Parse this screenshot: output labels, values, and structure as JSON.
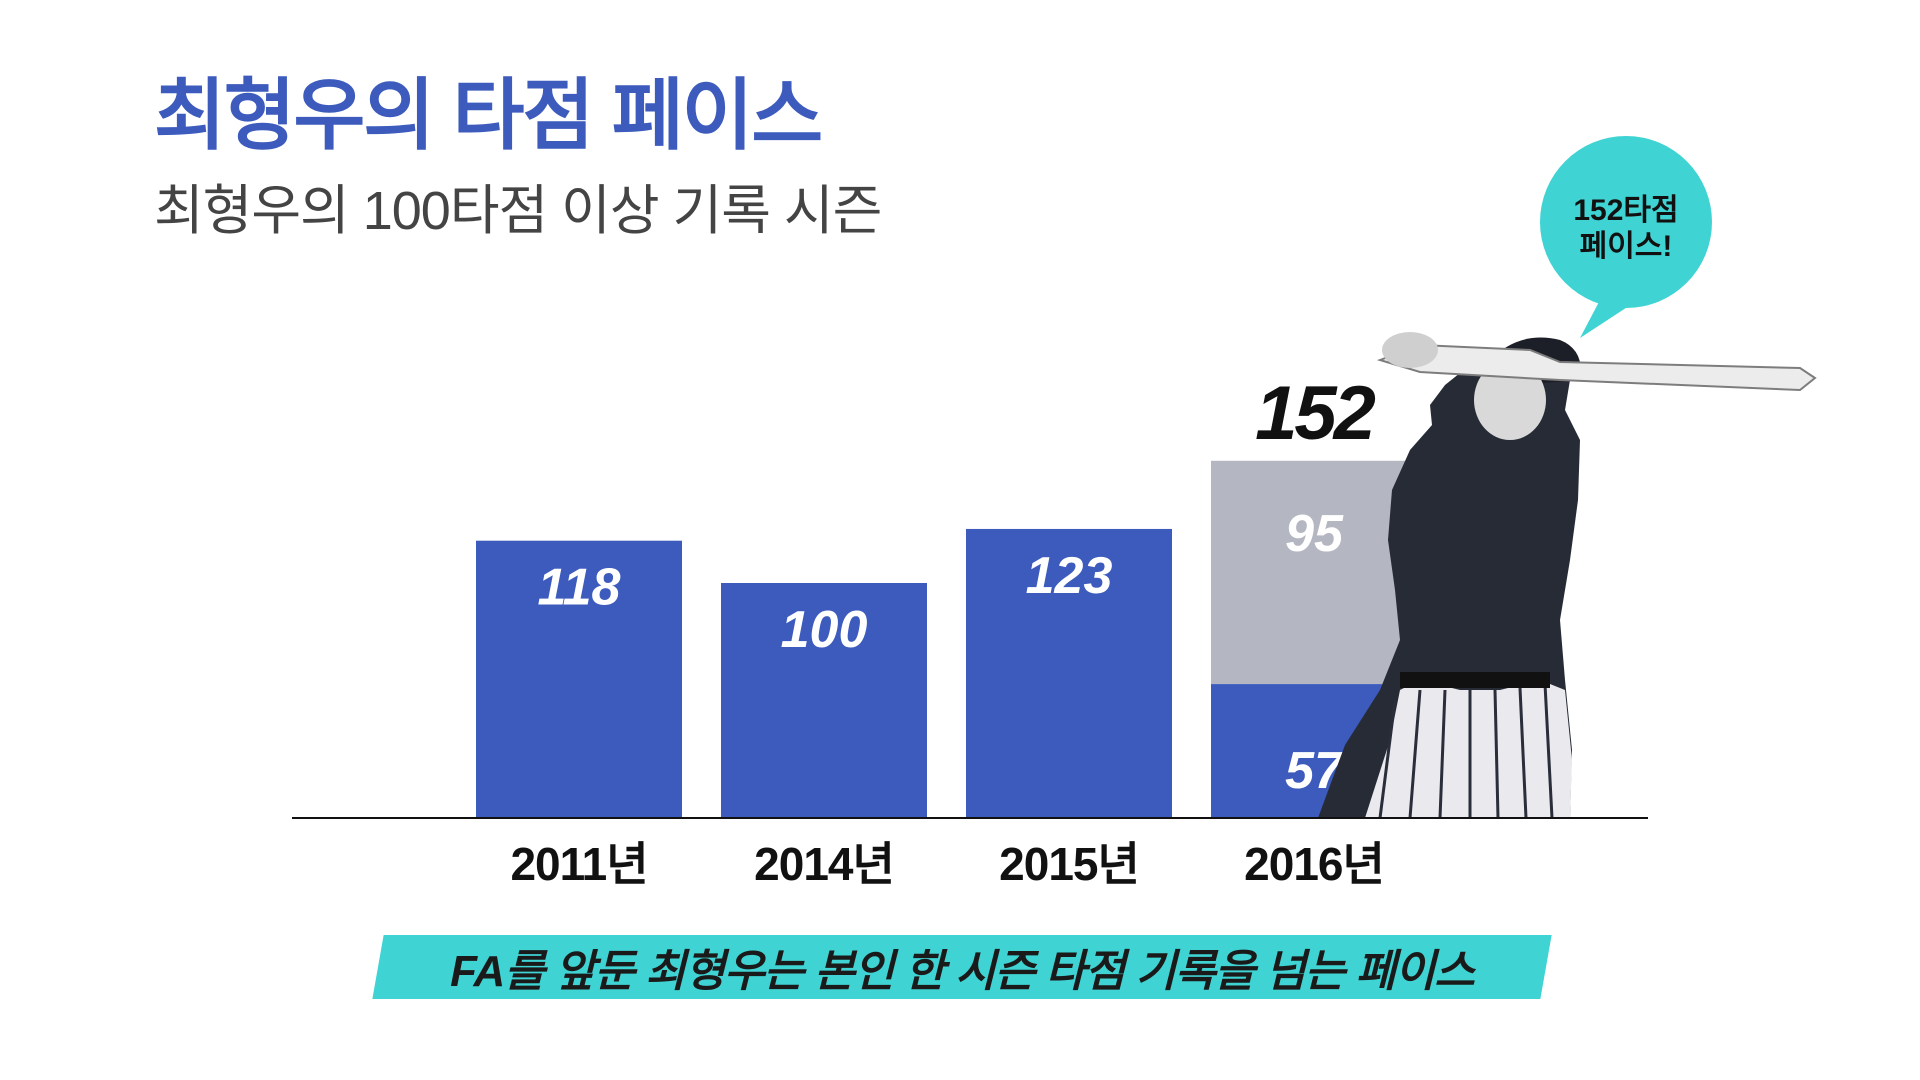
{
  "header": {
    "title": "최형우의 타점 페이스",
    "subtitle": "최형우의 100타점 이상 기록 시즌"
  },
  "callout": {
    "line1": "152타점",
    "line2": "페이스!"
  },
  "caption": "FA를 앞둔 최형우는 본인 한 시즌 타점 기록을 넘는 페이스",
  "colors": {
    "accent": "#3c5bbd",
    "projection": "#b4b6c1",
    "callout": "#3fd3d3",
    "text": "#111111"
  },
  "chart_data": {
    "type": "bar",
    "categories": [
      "2011년",
      "2014년",
      "2015년",
      "2016년"
    ],
    "series": [
      {
        "values": [
          118,
          100,
          123,
          57
        ]
      },
      {
        "values": [
          0,
          0,
          0,
          95
        ]
      }
    ],
    "totals": [
      {
        "category": "2016년",
        "value": 152
      }
    ],
    "data_labels": [
      "118",
      "100",
      "123",
      "57",
      "95",
      "152"
    ],
    "stacked": true,
    "ylim": [
      0,
      152
    ],
    "grid": false,
    "legend": "none"
  }
}
